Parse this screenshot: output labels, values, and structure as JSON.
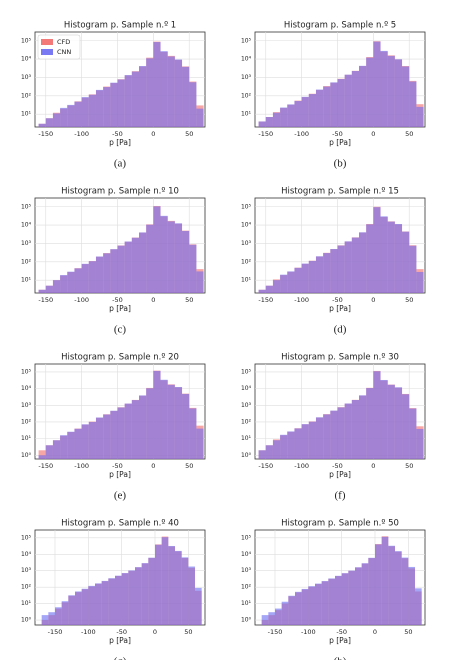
{
  "chart_data": [
    {
      "type": "histogram",
      "title": "Histogram p. Sample n.º 1",
      "xlabel": "p [Pa]",
      "caption": "(a)",
      "legend": "upper left",
      "log_scale": true,
      "grid": true,
      "bins": [
        -160,
        -150,
        -140,
        -130,
        -120,
        -110,
        -100,
        -90,
        -80,
        -70,
        -60,
        -50,
        -40,
        -30,
        -20,
        -10,
        0,
        10,
        20,
        30,
        40,
        50,
        60,
        70
      ],
      "series": [
        {
          "name": "CFD",
          "color": "#f26a6a",
          "values": [
            3,
            6,
            12,
            20,
            30,
            50,
            80,
            120,
            200,
            320,
            500,
            800,
            1300,
            2200,
            4000,
            12000,
            90000,
            25000,
            15000,
            9000,
            4000,
            600,
            30
          ]
        },
        {
          "name": "CNN",
          "color": "#6a6af2",
          "values": [
            3,
            6,
            11,
            22,
            32,
            48,
            85,
            115,
            210,
            300,
            520,
            780,
            1350,
            2100,
            4200,
            11000,
            85000,
            27000,
            14000,
            9500,
            3800,
            550,
            20
          ]
        }
      ],
      "xlim": [
        -165,
        72
      ],
      "ylim": [
        2,
        300000
      ],
      "xticks": [
        -150,
        -100,
        -50,
        0,
        50
      ],
      "yticks": [
        {
          "value": 10,
          "label": "10¹"
        },
        {
          "value": 100,
          "label": "10²"
        },
        {
          "value": 1000,
          "label": "10³"
        },
        {
          "value": 10000,
          "label": "10⁴"
        },
        {
          "value": 100000,
          "label": "10⁵"
        }
      ]
    },
    {
      "type": "histogram",
      "title": "Histogram p. Sample n.º 5",
      "xlabel": "p [Pa]",
      "caption": "(b)",
      "log_scale": true,
      "grid": true,
      "bins": [
        -160,
        -150,
        -140,
        -130,
        -120,
        -110,
        -100,
        -90,
        -80,
        -70,
        -60,
        -50,
        -40,
        -30,
        -20,
        -10,
        0,
        10,
        20,
        30,
        40,
        50,
        60,
        70
      ],
      "series": [
        {
          "color": "#f26a6a",
          "values": [
            4,
            7,
            13,
            22,
            33,
            55,
            85,
            130,
            210,
            340,
            520,
            850,
            1400,
            2300,
            4200,
            13000,
            95000,
            26000,
            16000,
            9500,
            4200,
            650,
            35
          ]
        },
        {
          "color": "#6a6af2",
          "values": [
            4,
            7,
            12,
            23,
            34,
            52,
            88,
            125,
            220,
            320,
            540,
            820,
            1420,
            2250,
            4300,
            12000,
            90000,
            28000,
            15000,
            9800,
            4000,
            600,
            25
          ]
        }
      ],
      "xlim": [
        -165,
        72
      ],
      "ylim": [
        2,
        300000
      ],
      "xticks": [
        -150,
        -100,
        -50,
        0,
        50
      ],
      "yticks": [
        {
          "value": 10,
          "label": "10¹"
        },
        {
          "value": 100,
          "label": "10²"
        },
        {
          "value": 1000,
          "label": "10³"
        },
        {
          "value": 10000,
          "label": "10⁴"
        },
        {
          "value": 100000,
          "label": "10⁵"
        }
      ]
    },
    {
      "type": "histogram",
      "title": "Histogram p. Sample n.º 10",
      "xlabel": "p [Pa]",
      "caption": "(c)",
      "log_scale": true,
      "grid": true,
      "bins": [
        -160,
        -150,
        -140,
        -130,
        -120,
        -110,
        -100,
        -90,
        -80,
        -70,
        -60,
        -50,
        -40,
        -30,
        -20,
        -10,
        0,
        10,
        20,
        30,
        40,
        50,
        60,
        70
      ],
      "series": [
        {
          "color": "#f26a6a",
          "values": [
            3,
            5,
            10,
            18,
            28,
            45,
            75,
            110,
            190,
            300,
            480,
            780,
            1250,
            2100,
            3900,
            11000,
            110000,
            30000,
            17000,
            12000,
            5000,
            900,
            40
          ]
        },
        {
          "color": "#6a6af2",
          "values": [
            3,
            5,
            10,
            19,
            29,
            44,
            78,
            108,
            195,
            290,
            490,
            760,
            1280,
            2050,
            4000,
            10500,
            105000,
            32000,
            16000,
            12500,
            4800,
            850,
            30
          ]
        }
      ],
      "xlim": [
        -165,
        72
      ],
      "ylim": [
        2,
        300000
      ],
      "xticks": [
        -150,
        -100,
        -50,
        0,
        50
      ],
      "yticks": [
        {
          "value": 10,
          "label": "10¹"
        },
        {
          "value": 100,
          "label": "10²"
        },
        {
          "value": 1000,
          "label": "10³"
        },
        {
          "value": 10000,
          "label": "10⁴"
        },
        {
          "value": 100000,
          "label": "10⁵"
        }
      ]
    },
    {
      "type": "histogram",
      "title": "Histogram p. Sample n.º 15",
      "xlabel": "p [Pa]",
      "caption": "(d)",
      "log_scale": true,
      "grid": true,
      "bins": [
        -160,
        -150,
        -140,
        -130,
        -120,
        -110,
        -100,
        -90,
        -80,
        -70,
        -60,
        -50,
        -40,
        -30,
        -20,
        -10,
        0,
        10,
        20,
        30,
        40,
        50,
        60,
        70
      ],
      "series": [
        {
          "color": "#f26a6a",
          "values": [
            3,
            5,
            11,
            19,
            29,
            48,
            78,
            115,
            195,
            310,
            490,
            790,
            1280,
            2150,
            3950,
            11500,
            100000,
            28000,
            16000,
            11000,
            4500,
            800,
            40
          ]
        },
        {
          "color": "#6a6af2",
          "values": [
            3,
            5,
            10,
            20,
            30,
            47,
            80,
            112,
            200,
            300,
            500,
            770,
            1300,
            2100,
            4050,
            11000,
            95000,
            30000,
            15500,
            11500,
            4400,
            750,
            28
          ]
        }
      ],
      "xlim": [
        -165,
        72
      ],
      "ylim": [
        2,
        300000
      ],
      "xticks": [
        -150,
        -100,
        -50,
        0,
        50
      ],
      "yticks": [
        {
          "value": 10,
          "label": "10¹"
        },
        {
          "value": 100,
          "label": "10²"
        },
        {
          "value": 1000,
          "label": "10³"
        },
        {
          "value": 10000,
          "label": "10⁴"
        },
        {
          "value": 100000,
          "label": "10⁵"
        }
      ]
    },
    {
      "type": "histogram",
      "title": "Histogram p. Sample n.º 20",
      "xlabel": "p [Pa]",
      "caption": "(e)",
      "log_scale": true,
      "grid": true,
      "bins": [
        -160,
        -150,
        -140,
        -130,
        -120,
        -110,
        -100,
        -90,
        -80,
        -70,
        -60,
        -50,
        -40,
        -30,
        -20,
        -10,
        0,
        10,
        20,
        30,
        40,
        50,
        60,
        70
      ],
      "series": [
        {
          "color": "#f26a6a",
          "values": [
            2,
            4,
            8,
            15,
            25,
            40,
            70,
            105,
            180,
            290,
            460,
            760,
            1250,
            2100,
            3800,
            11000,
            120000,
            32000,
            18000,
            12000,
            5000,
            700,
            60
          ]
        },
        {
          "color": "#6a6af2",
          "values": [
            1,
            4,
            8,
            16,
            26,
            39,
            72,
            100,
            185,
            280,
            470,
            740,
            1270,
            2050,
            3900,
            10500,
            115000,
            34000,
            17000,
            12500,
            4800,
            650,
            40
          ]
        }
      ],
      "xlim": [
        -165,
        72
      ],
      "ylim": [
        0.6,
        300000
      ],
      "xticks": [
        -150,
        -100,
        -50,
        0,
        50
      ],
      "yticks": [
        {
          "value": 1,
          "label": "10⁰"
        },
        {
          "value": 10,
          "label": "10¹"
        },
        {
          "value": 100,
          "label": "10²"
        },
        {
          "value": 1000,
          "label": "10³"
        },
        {
          "value": 10000,
          "label": "10⁴"
        },
        {
          "value": 100000,
          "label": "10⁵"
        }
      ]
    },
    {
      "type": "histogram",
      "title": "Histogram p. Sample n.º 30",
      "xlabel": "p [Pa]",
      "caption": "(f)",
      "log_scale": true,
      "grid": true,
      "bins": [
        -160,
        -150,
        -140,
        -130,
        -120,
        -110,
        -100,
        -90,
        -80,
        -70,
        -60,
        -50,
        -40,
        -30,
        -20,
        -10,
        0,
        10,
        20,
        30,
        40,
        50,
        60,
        70
      ],
      "series": [
        {
          "color": "#f26a6a",
          "values": [
            2,
            4,
            9,
            16,
            26,
            42,
            72,
            108,
            185,
            295,
            470,
            770,
            1260,
            2120,
            3850,
            11200,
            115000,
            31000,
            17500,
            11500,
            4800,
            680,
            55
          ]
        },
        {
          "color": "#6a6af2",
          "values": [
            2,
            4,
            8,
            17,
            27,
            41,
            74,
            104,
            190,
            285,
            480,
            750,
            1280,
            2080,
            3950,
            10800,
            110000,
            33000,
            17000,
            12000,
            4600,
            640,
            38
          ]
        }
      ],
      "xlim": [
        -165,
        72
      ],
      "ylim": [
        0.6,
        300000
      ],
      "xticks": [
        -150,
        -100,
        -50,
        0,
        50
      ],
      "yticks": [
        {
          "value": 1,
          "label": "10⁰"
        },
        {
          "value": 10,
          "label": "10¹"
        },
        {
          "value": 100,
          "label": "10²"
        },
        {
          "value": 1000,
          "label": "10³"
        },
        {
          "value": 10000,
          "label": "10⁴"
        },
        {
          "value": 100000,
          "label": "10⁵"
        }
      ]
    },
    {
      "type": "histogram",
      "title": "Histogram p. Sample n.º 40",
      "xlabel": "p [Pa]",
      "caption": "(g)",
      "log_scale": true,
      "grid": true,
      "bins": [
        -170,
        -160,
        -150,
        -140,
        -130,
        -120,
        -110,
        -100,
        -90,
        -80,
        -70,
        -60,
        -50,
        -40,
        -30,
        -20,
        -10,
        0,
        10,
        20,
        30,
        40,
        50,
        60,
        70
      ],
      "series": [
        {
          "color": "#f26a6a",
          "values": [
            1,
            2,
            5,
            12,
            30,
            50,
            75,
            110,
            160,
            230,
            330,
            480,
            700,
            1000,
            1600,
            2800,
            6000,
            40000,
            120000,
            30000,
            15000,
            6000,
            1500,
            60
          ]
        },
        {
          "color": "#6a6af2",
          "values": [
            2,
            3,
            6,
            14,
            32,
            55,
            80,
            120,
            170,
            240,
            350,
            500,
            720,
            1050,
            1650,
            2900,
            6200,
            38000,
            110000,
            32000,
            16000,
            6500,
            1800,
            90
          ]
        }
      ],
      "xlim": [
        -180,
        75
      ],
      "ylim": [
        0.5,
        300000
      ],
      "xticks": [
        -150,
        -100,
        -50,
        0,
        50
      ],
      "yticks": [
        {
          "value": 1,
          "label": "10⁰"
        },
        {
          "value": 10,
          "label": "10¹"
        },
        {
          "value": 100,
          "label": "10²"
        },
        {
          "value": 1000,
          "label": "10³"
        },
        {
          "value": 10000,
          "label": "10⁴"
        },
        {
          "value": 100000,
          "label": "10⁵"
        }
      ]
    },
    {
      "type": "histogram",
      "title": "Histogram p. Sample n.º 50",
      "xlabel": "p [Pa]",
      "caption": "(h)",
      "log_scale": true,
      "grid": true,
      "bins": [
        -170,
        -160,
        -150,
        -140,
        -130,
        -120,
        -110,
        -100,
        -90,
        -80,
        -70,
        -60,
        -50,
        -40,
        -30,
        -20,
        -10,
        0,
        10,
        20,
        30,
        40,
        50,
        60,
        70
      ],
      "series": [
        {
          "color": "#f26a6a",
          "values": [
            1,
            2,
            4,
            10,
            28,
            48,
            72,
            105,
            155,
            225,
            320,
            470,
            690,
            990,
            1580,
            2750,
            5900,
            42000,
            125000,
            31000,
            14500,
            5800,
            1400,
            55
          ]
        },
        {
          "color": "#6a6af2",
          "values": [
            2,
            3,
            5,
            13,
            30,
            52,
            78,
            115,
            165,
            235,
            340,
            490,
            710,
            1020,
            1620,
            2850,
            6100,
            40000,
            115000,
            33000,
            15500,
            6300,
            1700,
            85
          ]
        }
      ],
      "xlim": [
        -180,
        75
      ],
      "ylim": [
        0.5,
        300000
      ],
      "xticks": [
        -150,
        -100,
        -50,
        0,
        50
      ],
      "yticks": [
        {
          "value": 1,
          "label": "10⁰"
        },
        {
          "value": 10,
          "label": "10¹"
        },
        {
          "value": 100,
          "label": "10²"
        },
        {
          "value": 1000,
          "label": "10³"
        },
        {
          "value": 10000,
          "label": "10⁴"
        },
        {
          "value": 100000,
          "label": "10⁵"
        }
      ]
    }
  ]
}
